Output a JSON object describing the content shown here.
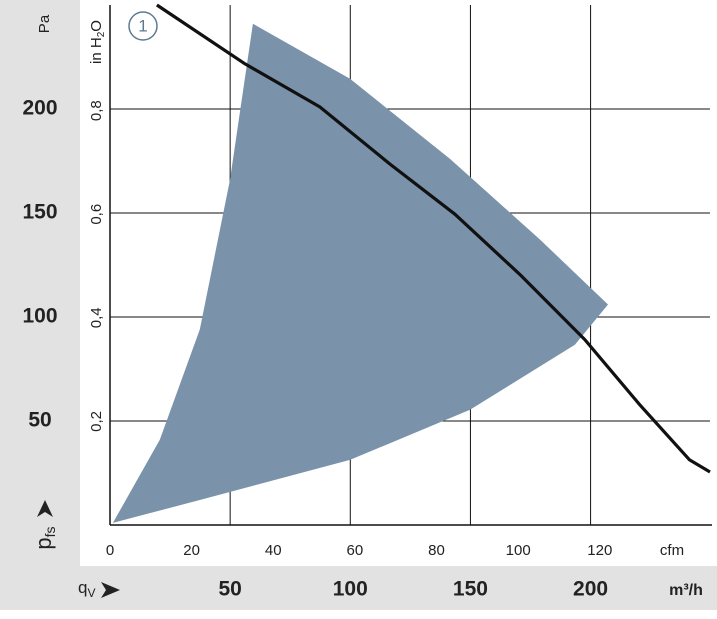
{
  "chart_data": {
    "type": "line",
    "y_label": [
      "p",
      "fs"
    ],
    "y_unit": "Pa",
    "y2_label": [
      "in H",
      "2",
      "O"
    ],
    "x_unit": "cfm",
    "x2_label": [
      "q",
      "V"
    ],
    "x2_unit": "m³/h",
    "annotation": "1",
    "xlim": [
      0,
      147
    ],
    "xticks": [
      0,
      20,
      40,
      60,
      80,
      100,
      120
    ],
    "x2lim": [
      0,
      249.7
    ],
    "x2ticks": [
      50,
      100,
      150,
      200
    ],
    "ylim": [
      0,
      250
    ],
    "yticks": [
      50,
      100,
      150,
      200
    ],
    "y2lim": [
      0,
      1.004
    ],
    "y2ticks": [
      {
        "value": 0.2,
        "label": "0,2"
      },
      {
        "value": 0.4,
        "label": "0,4"
      },
      {
        "value": 0.6,
        "label": "0,6"
      },
      {
        "value": 0.8,
        "label": "0,8"
      }
    ],
    "grid": true,
    "series": [
      {
        "kind": "area",
        "color": "#7b93aa",
        "x": [
          0.7,
          12.2,
          22,
          29.4,
          35,
          58.8,
          83.3,
          105.3,
          122,
          113.9,
          88.2,
          58.8,
          22,
          0.7
        ],
        "values": [
          1,
          41,
          94,
          166,
          241,
          214.5,
          176,
          137.3,
          106,
          86.7,
          55.4,
          31.3,
          12,
          1
        ]
      },
      {
        "kind": "line",
        "color": "#111111",
        "x": [
          11.5,
          33.1,
          51.4,
          68.6,
          84.5,
          100.4,
          116.3,
          129.8,
          142,
          147
        ],
        "values": [
          250,
          221.7,
          201,
          173.5,
          149.4,
          120.5,
          89.2,
          57.8,
          31.3,
          25.5
        ]
      }
    ]
  }
}
